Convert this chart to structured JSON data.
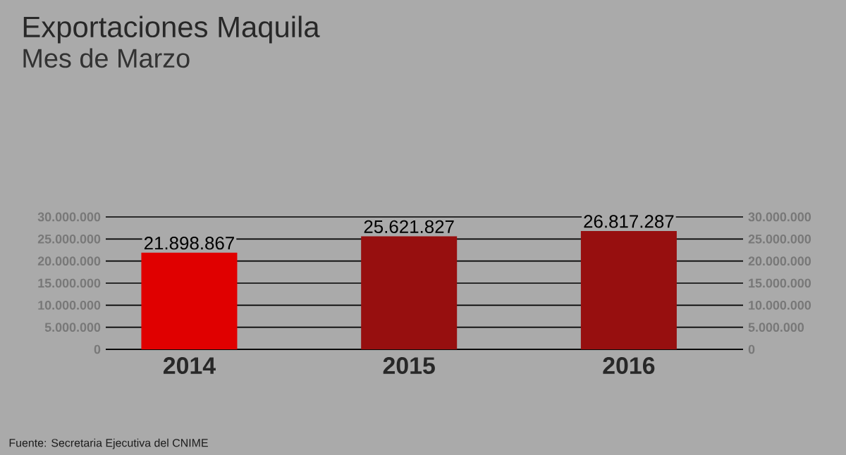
{
  "chart_data": {
    "type": "bar",
    "title": "Exportaciones Maquila",
    "subtitle": "Mes de Marzo",
    "categories": [
      "2014",
      "2015",
      "2016"
    ],
    "values": [
      21898867,
      25621827,
      26817287
    ],
    "colors": [
      "#e00000",
      "#970f0f",
      "#970f0f"
    ],
    "value_labels": [
      "21.898.867",
      "25.621.827",
      "26.817.287"
    ],
    "ylim": [
      0,
      30000000
    ],
    "yticks": [
      {
        "value": 0,
        "label": "0"
      },
      {
        "value": 5000000,
        "label": "5.000.000"
      },
      {
        "value": 10000000,
        "label": "10.000.000"
      },
      {
        "value": 15000000,
        "label": "15.000.000"
      },
      {
        "value": 20000000,
        "label": "20.000.000"
      },
      {
        "value": 25000000,
        "label": "25.000.000"
      },
      {
        "value": 30000000,
        "label": "30.000.000"
      }
    ],
    "y2lim": [
      0,
      30000000
    ],
    "y2ticks": [
      {
        "value": 0,
        "label": "0"
      },
      {
        "value": 5000000,
        "label": "5.000.000"
      },
      {
        "value": 10000000,
        "label": "10.000.000"
      },
      {
        "value": 15000000,
        "label": "15.000.000"
      },
      {
        "value": 20000000,
        "label": "20.000.000"
      },
      {
        "value": 25000000,
        "label": "25.000.000"
      },
      {
        "value": 30000000,
        "label": "30.000.000"
      }
    ],
    "grid": "y",
    "annotations": [
      "Fuente: Secretaria Ejecutiva del CNIME"
    ]
  }
}
